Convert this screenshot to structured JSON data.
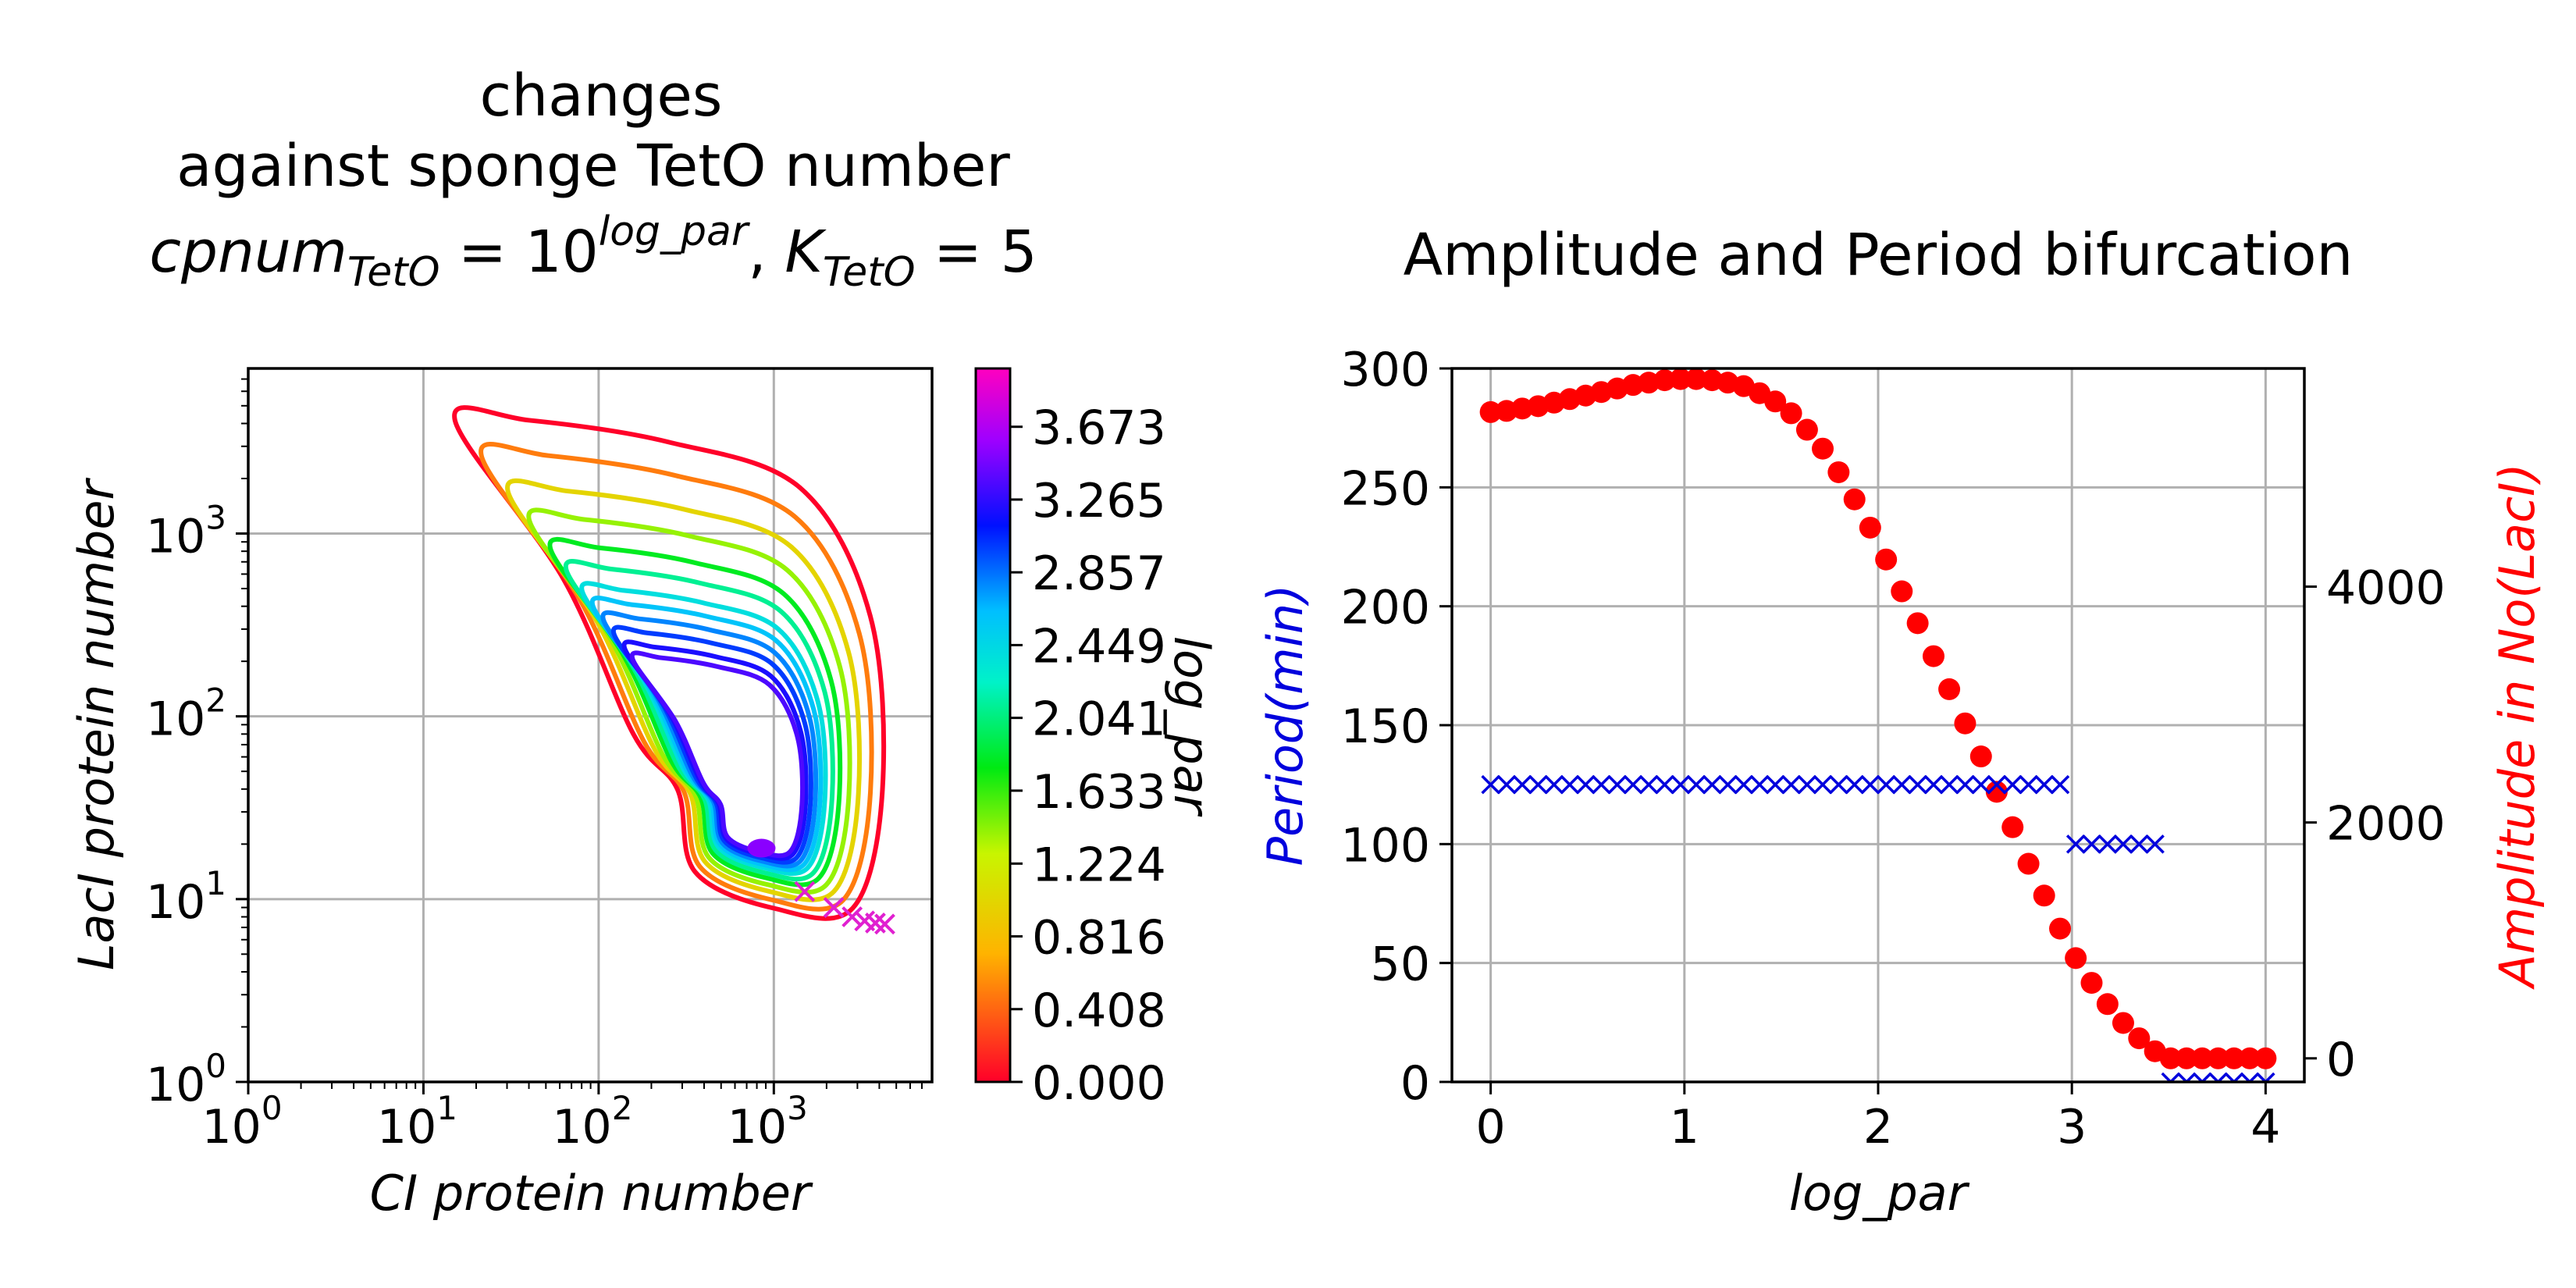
{
  "chart_data": [
    {
      "type": "line",
      "title_lines": [
        "changes",
        "against sponge TetO number"
      ],
      "title_formula": {
        "a": "cpnum",
        "a_sub": "TetO",
        "eq1": " = 10",
        "sup": "log_par",
        "sep": ",  ",
        "b": "K",
        "b_sub": "TetO",
        "eq2": " = 5"
      },
      "xlabel": "CI protein number",
      "ylabel": "LacI protein number",
      "xscale": "log",
      "yscale": "log",
      "xlim": [
        1,
        8000
      ],
      "ylim": [
        1,
        8000
      ],
      "grid": true,
      "x_ticks": [
        {
          "base": "10",
          "exp": "0"
        },
        {
          "base": "10",
          "exp": "1"
        },
        {
          "base": "10",
          "exp": "2"
        },
        {
          "base": "10",
          "exp": "3"
        }
      ],
      "y_ticks": [
        {
          "base": "10",
          "exp": "0"
        },
        {
          "base": "10",
          "exp": "1"
        },
        {
          "base": "10",
          "exp": "2"
        },
        {
          "base": "10",
          "exp": "3"
        }
      ],
      "colorbar": {
        "label": "log_par",
        "range": [
          0,
          4
        ],
        "ticks": [
          "0.000",
          "0.408",
          "0.816",
          "1.224",
          "1.633",
          "2.041",
          "2.449",
          "2.857",
          "3.265",
          "3.673"
        ],
        "colormap": "gist_rainbow"
      },
      "series_note": "limit cycle trajectories, one per log_par value from 0 to 4",
      "limit_cycle_params": [
        0,
        0.5,
        1,
        1.4,
        1.8,
        2.1,
        2.4,
        2.6,
        2.8,
        3.0,
        3.2,
        3.35
      ],
      "fixed_points": [
        {
          "x": 1500,
          "y": 11
        },
        {
          "x": 2200,
          "y": 9
        },
        {
          "x": 2800,
          "y": 8
        },
        {
          "x": 3300,
          "y": 7.6
        },
        {
          "x": 3800,
          "y": 7.4
        },
        {
          "x": 4300,
          "y": 7.3
        }
      ]
    },
    {
      "type": "scatter",
      "title": "Amplitude and Period bifurcation",
      "xlabel": "log_par",
      "ylabel_left": "Period(min)",
      "ylabel_right": "Amplitude in No(LacI)",
      "left_color": "#0000dd",
      "right_color": "#ff0000",
      "xlim": [
        -0.2,
        4.2
      ],
      "ylim_left": [
        0,
        300
      ],
      "ylim_right": [
        -200,
        5850
      ],
      "x_ticks": [
        "0",
        "1",
        "2",
        "3",
        "4"
      ],
      "y_ticks_left": [
        "0",
        "50",
        "100",
        "150",
        "200",
        "250",
        "300"
      ],
      "y_ticks_right": [
        "0",
        "2000",
        "4000"
      ],
      "grid": true,
      "series": [
        {
          "name": "Period",
          "marker": "x",
          "color": "#0000dd",
          "x": [
            0.0,
            0.082,
            0.163,
            0.245,
            0.327,
            0.408,
            0.49,
            0.571,
            0.653,
            0.735,
            0.816,
            0.898,
            0.98,
            1.061,
            1.143,
            1.224,
            1.306,
            1.388,
            1.469,
            1.551,
            1.633,
            1.714,
            1.796,
            1.878,
            1.959,
            2.041,
            2.122,
            2.204,
            2.286,
            2.367,
            2.449,
            2.531,
            2.612,
            2.694,
            2.776,
            2.857,
            2.939,
            3.02,
            3.102,
            3.184,
            3.265,
            3.347,
            3.429,
            3.51,
            3.592,
            3.673,
            3.755,
            3.837,
            3.918,
            4.0
          ],
          "y": [
            125,
            125,
            125,
            125,
            125,
            125,
            125,
            125,
            125,
            125,
            125,
            125,
            125,
            125,
            125,
            125,
            125,
            125,
            125,
            125,
            125,
            125,
            125,
            125,
            125,
            125,
            125,
            125,
            125,
            125,
            125,
            125,
            125,
            125,
            125,
            125,
            125,
            100,
            100,
            100,
            100,
            100,
            100,
            0,
            0,
            0,
            0,
            0,
            0,
            0
          ]
        },
        {
          "name": "Amplitude",
          "marker": "o",
          "color": "#ff0000",
          "x": [
            0.0,
            0.082,
            0.163,
            0.245,
            0.327,
            0.408,
            0.49,
            0.571,
            0.653,
            0.735,
            0.816,
            0.898,
            0.98,
            1.061,
            1.143,
            1.224,
            1.306,
            1.388,
            1.469,
            1.551,
            1.633,
            1.714,
            1.796,
            1.878,
            1.959,
            2.041,
            2.122,
            2.204,
            2.286,
            2.367,
            2.449,
            2.531,
            2.612,
            2.694,
            2.776,
            2.857,
            2.939,
            3.02,
            3.102,
            3.184,
            3.265,
            3.347,
            3.429,
            3.51,
            3.592,
            3.673,
            3.755,
            3.837,
            3.918,
            4.0
          ],
          "y": [
            5480,
            5490,
            5510,
            5530,
            5560,
            5590,
            5620,
            5650,
            5680,
            5710,
            5730,
            5750,
            5760,
            5760,
            5750,
            5730,
            5700,
            5640,
            5570,
            5470,
            5330,
            5170,
            4970,
            4740,
            4500,
            4230,
            3960,
            3690,
            3410,
            3130,
            2840,
            2560,
            2260,
            1960,
            1650,
            1380,
            1100,
            850,
            640,
            460,
            300,
            170,
            60,
            0,
            0,
            0,
            0,
            0,
            0,
            0
          ]
        }
      ]
    }
  ]
}
